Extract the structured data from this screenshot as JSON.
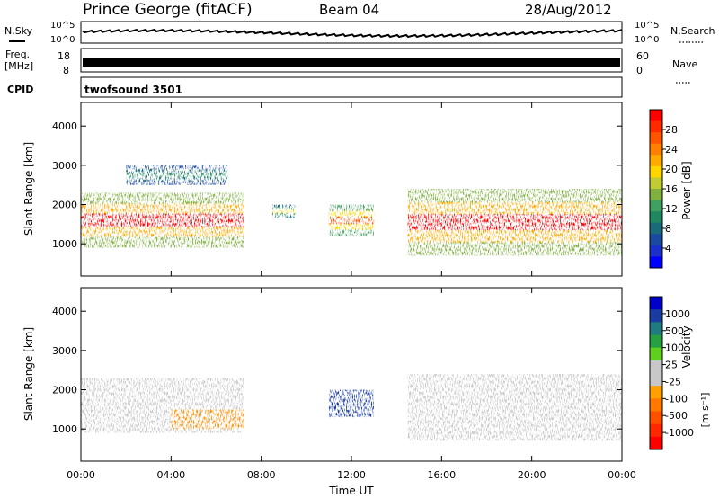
{
  "header": {
    "station": "Prince George (fitACF)",
    "beam": "Beam 04",
    "date": "28/Aug/2012"
  },
  "strips": {
    "nsky_label": "N.Sky",
    "nsearch_label": "N.Search",
    "freq_label_1": "Freq.",
    "freq_label_2": "[MHz]",
    "nave_label": "Nave",
    "cpid_label": "CPID",
    "cpid_value": "twofsound 3501",
    "noise_tick_top": "10^5",
    "noise_tick_bottom": "10^0",
    "freq_ticks": [
      "18",
      "8"
    ],
    "nave_ticks": [
      "60",
      "0"
    ]
  },
  "colorbars": {
    "power": {
      "label": "Power [dB]",
      "ticks": [
        "28",
        "24",
        "20",
        "16",
        "12",
        "8",
        "4"
      ],
      "colors": [
        "#ff0000",
        "#ff2a00",
        "#ff5500",
        "#ff8000",
        "#ffaa00",
        "#ffd500",
        "#bfcc33",
        "#80b040",
        "#40a060",
        "#208860",
        "#1a6a7a",
        "#1a4aa0",
        "#1a30c8",
        "#0000ff"
      ]
    },
    "velocity": {
      "label": "Velocity",
      "unit": "[m s⁻¹]",
      "ticks": [
        "1000",
        "500",
        "100",
        "25",
        "-25",
        "-100",
        "-500",
        "-1000"
      ],
      "colors": [
        "#0000c8",
        "#1a3ca0",
        "#207a80",
        "#26a040",
        "#60d020",
        "#c8c8c8",
        "#c8c8c8",
        "#ffa000",
        "#ff7800",
        "#ff5000",
        "#ff2800",
        "#ff0000"
      ]
    }
  },
  "axes": {
    "y_label": "Slant Range [km]",
    "y_ticks": [
      "4000",
      "3000",
      "2000",
      "1000"
    ],
    "x_label": "Time UT",
    "x_ticks": [
      "00:00",
      "04:00",
      "08:00",
      "12:00",
      "16:00",
      "20:00",
      "00:00"
    ]
  },
  "chart_data": [
    {
      "type": "heatmap",
      "title": "Power",
      "ylabel": "Slant Range [km]",
      "ylim": [
        180,
        4600
      ],
      "xlim": [
        "00:00",
        "24:00"
      ],
      "colorbar_label": "Power [dB]",
      "colorbar_range": [
        0,
        31
      ],
      "bands": [
        {
          "start": "00:00",
          "end": "07:15",
          "range_lo": 900,
          "range_hi": 2300,
          "peak_db": 30
        },
        {
          "start": "02:00",
          "end": "06:30",
          "range_lo": 2500,
          "range_hi": 3000,
          "peak_db": 10
        },
        {
          "start": "08:30",
          "end": "09:30",
          "range_lo": 1650,
          "range_hi": 2000,
          "peak_db": 18
        },
        {
          "start": "11:00",
          "end": "13:00",
          "range_lo": 1200,
          "range_hi": 2000,
          "peak_db": 26
        },
        {
          "start": "14:30",
          "end": "24:00",
          "range_lo": 700,
          "range_hi": 2400,
          "peak_db": 30
        }
      ]
    },
    {
      "type": "heatmap",
      "title": "Velocity",
      "ylabel": "Slant Range [km]",
      "xlabel": "Time UT",
      "ylim": [
        180,
        4600
      ],
      "xlim": [
        "00:00",
        "24:00"
      ],
      "colorbar_label": "Velocity [m s⁻¹]",
      "colorbar_range": [
        -1000,
        1000
      ],
      "bands": [
        {
          "start": "00:00",
          "end": "07:15",
          "range_lo": 900,
          "range_hi": 2300,
          "velocity": 0
        },
        {
          "start": "04:00",
          "end": "07:15",
          "range_lo": 1000,
          "range_hi": 1500,
          "velocity": -300
        },
        {
          "start": "11:00",
          "end": "13:00",
          "range_lo": 1300,
          "range_hi": 2000,
          "velocity": 600
        },
        {
          "start": "14:30",
          "end": "24:00",
          "range_lo": 700,
          "range_hi": 2400,
          "velocity": 0
        }
      ]
    }
  ]
}
